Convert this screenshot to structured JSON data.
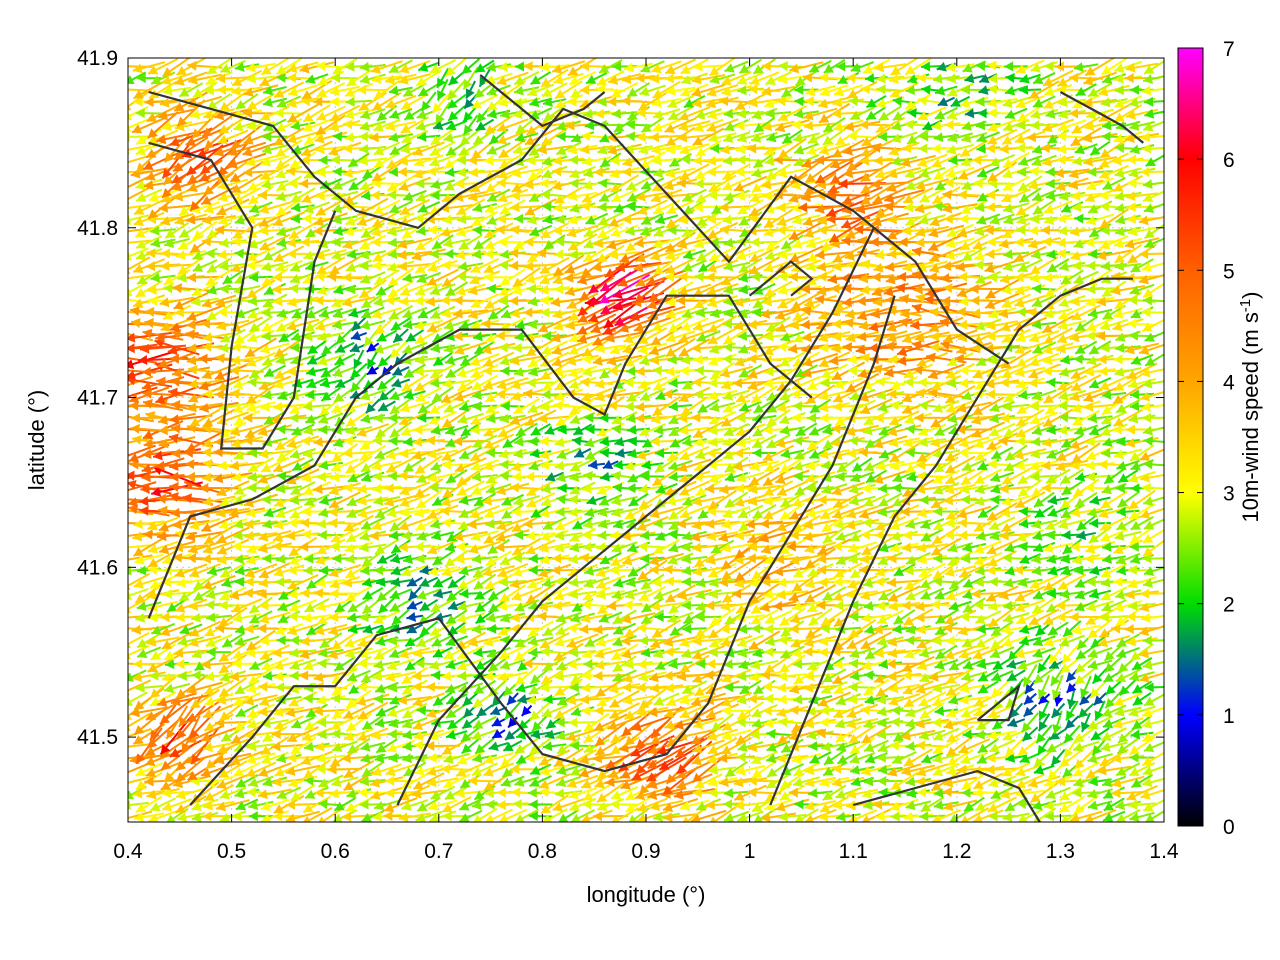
{
  "chart_data": {
    "type": "vector-field",
    "title": "",
    "xlabel": "longitude (°)",
    "ylabel": "latitude (°)",
    "xlim": [
      0.4,
      1.4
    ],
    "ylim": [
      41.45,
      41.9
    ],
    "xticks": [
      "0.4",
      "0.5",
      "0.6",
      "0.7",
      "0.8",
      "0.9",
      "1",
      "1.1",
      "1.2",
      "1.3",
      "1.4"
    ],
    "yticks": [
      "41.5",
      "41.6",
      "41.7",
      "41.8",
      "41.9"
    ],
    "grid": true,
    "colorbar": {
      "label_main": "10m-wind speed (m s",
      "label_sup": "-1",
      "label_end": ")",
      "range": [
        0,
        7
      ],
      "ticks": [
        "0",
        "1",
        "2",
        "3",
        "4",
        "5",
        "6",
        "7"
      ],
      "stops": [
        {
          "v": 0.0,
          "c": "#000000"
        },
        {
          "v": 1.0,
          "c": "#0000ff"
        },
        {
          "v": 2.0,
          "c": "#00dd00"
        },
        {
          "v": 3.0,
          "c": "#ffff00"
        },
        {
          "v": 4.0,
          "c": "#ffa500"
        },
        {
          "v": 5.0,
          "c": "#ff6000"
        },
        {
          "v": 6.0,
          "c": "#ff0000"
        },
        {
          "v": 7.0,
          "c": "#ff00ff"
        }
      ]
    },
    "wind_field": {
      "grid_dx": 0.0135,
      "grid_dy": 0.0069,
      "default_direction_deg": 195,
      "default_speed": 3.0,
      "regions": [
        {
          "lon": 0.43,
          "lat": 41.72,
          "speed": 5.4,
          "dir": 180,
          "r": 0.06
        },
        {
          "lon": 0.44,
          "lat": 41.65,
          "speed": 5.6,
          "dir": 175,
          "r": 0.05
        },
        {
          "lon": 0.47,
          "lat": 41.84,
          "speed": 5.0,
          "dir": 220,
          "r": 0.05
        },
        {
          "lon": 0.88,
          "lat": 41.76,
          "speed": 6.6,
          "dir": 205,
          "r": 0.04
        },
        {
          "lon": 0.63,
          "lat": 41.72,
          "speed": 1.6,
          "dir": 225,
          "r": 0.05
        },
        {
          "lon": 0.68,
          "lat": 41.58,
          "speed": 1.8,
          "dir": 210,
          "r": 0.05
        },
        {
          "lon": 0.85,
          "lat": 41.66,
          "speed": 1.9,
          "dir": 190,
          "r": 0.05
        },
        {
          "lon": 0.77,
          "lat": 41.51,
          "speed": 1.4,
          "dir": 220,
          "r": 0.04
        },
        {
          "lon": 1.15,
          "lat": 41.75,
          "speed": 4.5,
          "dir": 180,
          "r": 0.08
        },
        {
          "lon": 1.1,
          "lat": 41.82,
          "speed": 4.8,
          "dir": 200,
          "r": 0.05
        },
        {
          "lon": 1.33,
          "lat": 41.62,
          "speed": 2.4,
          "dir": 200,
          "r": 0.06
        },
        {
          "lon": 1.3,
          "lat": 41.52,
          "speed": 1.7,
          "dir": 240,
          "r": 0.06
        },
        {
          "lon": 0.92,
          "lat": 41.49,
          "speed": 5.2,
          "dir": 215,
          "r": 0.05
        },
        {
          "lon": 1.03,
          "lat": 41.6,
          "speed": 3.8,
          "dir": 200,
          "r": 0.06
        },
        {
          "lon": 0.72,
          "lat": 41.88,
          "speed": 2.2,
          "dir": 230,
          "r": 0.05
        },
        {
          "lon": 1.2,
          "lat": 41.88,
          "speed": 2.2,
          "dir": 190,
          "r": 0.06
        },
        {
          "lon": 0.45,
          "lat": 41.5,
          "speed": 5.3,
          "dir": 230,
          "r": 0.04
        }
      ]
    },
    "contours": [
      [
        [
          0.42,
          41.88
        ],
        [
          0.48,
          41.87
        ],
        [
          0.54,
          41.86
        ],
        [
          0.58,
          41.83
        ],
        [
          0.62,
          41.81
        ],
        [
          0.68,
          41.8
        ],
        [
          0.72,
          41.82
        ],
        [
          0.78,
          41.84
        ],
        [
          0.82,
          41.87
        ],
        [
          0.86,
          41.86
        ],
        [
          0.92,
          41.82
        ],
        [
          0.98,
          41.78
        ],
        [
          1.04,
          41.83
        ],
        [
          1.1,
          41.81
        ],
        [
          1.16,
          41.78
        ],
        [
          1.2,
          41.74
        ],
        [
          1.25,
          41.72
        ]
      ],
      [
        [
          0.42,
          41.85
        ],
        [
          0.48,
          41.84
        ],
        [
          0.52,
          41.8
        ],
        [
          0.5,
          41.73
        ],
        [
          0.49,
          41.67
        ],
        [
          0.53,
          41.67
        ],
        [
          0.56,
          41.7
        ],
        [
          0.58,
          41.78
        ],
        [
          0.6,
          41.81
        ]
      ],
      [
        [
          0.42,
          41.57
        ],
        [
          0.46,
          41.63
        ],
        [
          0.52,
          41.64
        ],
        [
          0.58,
          41.66
        ],
        [
          0.62,
          41.7
        ],
        [
          0.66,
          41.72
        ],
        [
          0.72,
          41.74
        ],
        [
          0.78,
          41.74
        ],
        [
          0.83,
          41.7
        ],
        [
          0.86,
          41.69
        ],
        [
          0.88,
          41.72
        ],
        [
          0.92,
          41.76
        ],
        [
          0.98,
          41.76
        ],
        [
          1.02,
          41.72
        ],
        [
          1.06,
          41.7
        ]
      ],
      [
        [
          0.46,
          41.46
        ],
        [
          0.52,
          41.5
        ],
        [
          0.56,
          41.53
        ],
        [
          0.6,
          41.53
        ],
        [
          0.64,
          41.56
        ],
        [
          0.7,
          41.57
        ],
        [
          0.76,
          41.52
        ],
        [
          0.8,
          41.49
        ],
        [
          0.86,
          41.48
        ],
        [
          0.92,
          41.49
        ],
        [
          0.96,
          41.52
        ],
        [
          1.0,
          41.58
        ],
        [
          1.04,
          41.62
        ],
        [
          1.08,
          41.66
        ],
        [
          1.12,
          41.72
        ],
        [
          1.14,
          41.76
        ]
      ],
      [
        [
          0.66,
          41.46
        ],
        [
          0.7,
          41.51
        ],
        [
          0.76,
          41.55
        ],
        [
          0.8,
          41.58
        ],
        [
          0.84,
          41.6
        ],
        [
          0.88,
          41.62
        ],
        [
          0.92,
          41.64
        ],
        [
          0.96,
          41.66
        ],
        [
          1.0,
          41.68
        ],
        [
          1.04,
          41.71
        ],
        [
          1.08,
          41.75
        ],
        [
          1.12,
          41.8
        ]
      ],
      [
        [
          1.02,
          41.46
        ],
        [
          1.06,
          41.52
        ],
        [
          1.1,
          41.58
        ],
        [
          1.14,
          41.63
        ],
        [
          1.18,
          41.66
        ],
        [
          1.22,
          41.7
        ],
        [
          1.26,
          41.74
        ],
        [
          1.3,
          41.76
        ],
        [
          1.34,
          41.77
        ],
        [
          1.37,
          41.77
        ]
      ],
      [
        [
          1.1,
          41.46
        ],
        [
          1.16,
          41.47
        ],
        [
          1.22,
          41.48
        ],
        [
          1.26,
          41.47
        ],
        [
          1.28,
          41.45
        ]
      ],
      [
        [
          1.22,
          41.51
        ],
        [
          1.25,
          41.51
        ],
        [
          1.26,
          41.53
        ],
        [
          1.24,
          41.52
        ],
        [
          1.22,
          41.51
        ]
      ],
      [
        [
          1.0,
          41.76
        ],
        [
          1.04,
          41.78
        ],
        [
          1.06,
          41.77
        ],
        [
          1.04,
          41.76
        ]
      ],
      [
        [
          0.74,
          41.89
        ],
        [
          0.78,
          41.87
        ],
        [
          0.8,
          41.86
        ],
        [
          0.84,
          41.87
        ],
        [
          0.86,
          41.88
        ]
      ],
      [
        [
          1.3,
          41.88
        ],
        [
          1.33,
          41.87
        ],
        [
          1.36,
          41.86
        ],
        [
          1.38,
          41.85
        ]
      ]
    ]
  }
}
